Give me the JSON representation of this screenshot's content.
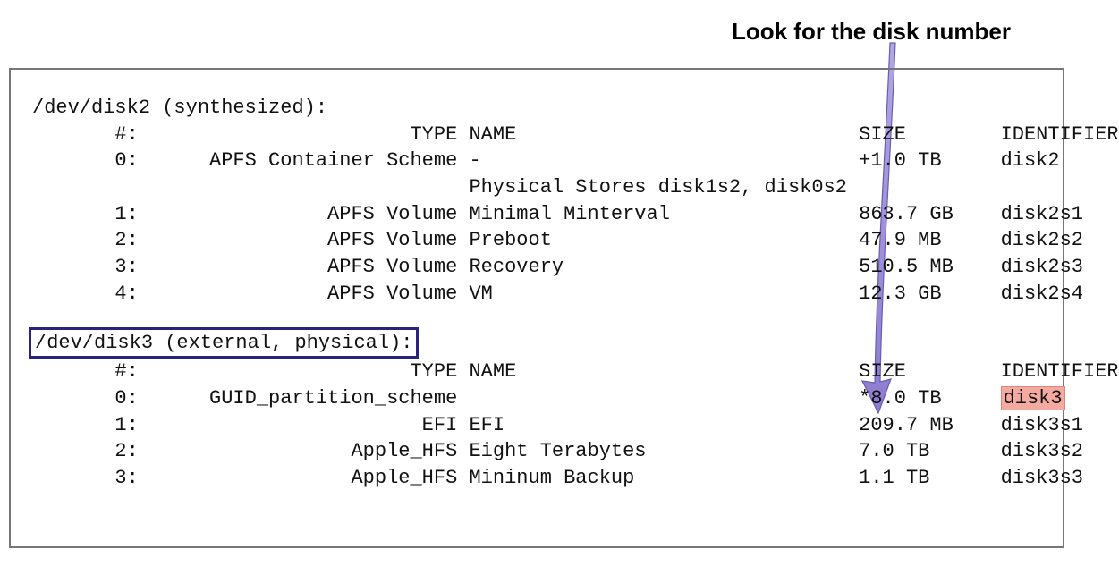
{
  "callout": {
    "text": "Look for the disk number",
    "font_size": 26,
    "font_weight": 700,
    "color": "#000000"
  },
  "arrow": {
    "color": "#9b8bd9",
    "stroke_color": "#6a5db0",
    "shaft_width": 7
  },
  "terminal": {
    "border_color": "#777777",
    "background": "#ffffff",
    "font_family": "SF Mono, Menlo, Consolas, monospace",
    "font_size": 22,
    "line_height": 1.35,
    "text_color": "#111111",
    "highlight_box": {
      "border_color": "#2a2280",
      "border_width": 3
    },
    "highlight_red": {
      "background": "#f4aaa0",
      "border": "#e1877a"
    },
    "col_widths": {
      "num": 6,
      "type": 27,
      "name": 33,
      "size": 12,
      "identifier": 12
    },
    "disks": [
      {
        "header": "/dev/disk2 (synthesized):",
        "header_boxed": false,
        "columns": {
          "num": "#:",
          "type": "TYPE",
          "name": "NAME",
          "size": "SIZE",
          "identifier": "IDENTIFIER"
        },
        "rows": [
          {
            "num": "0:",
            "type": "APFS Container Scheme",
            "name": "-",
            "size": "+1.0 TB",
            "identifier": "disk2",
            "id_highlight": false
          },
          {
            "num": "",
            "type": "",
            "name": "Physical Stores disk1s2, disk0s2",
            "size": "",
            "identifier": "",
            "id_highlight": false
          },
          {
            "num": "1:",
            "type": "APFS Volume",
            "name": "Minimal Minterval",
            "size": "863.7 GB",
            "identifier": "disk2s1",
            "id_highlight": false
          },
          {
            "num": "2:",
            "type": "APFS Volume",
            "name": "Preboot",
            "size": "47.9 MB",
            "identifier": "disk2s2",
            "id_highlight": false
          },
          {
            "num": "3:",
            "type": "APFS Volume",
            "name": "Recovery",
            "size": "510.5 MB",
            "identifier": "disk2s3",
            "id_highlight": false
          },
          {
            "num": "4:",
            "type": "APFS Volume",
            "name": "VM",
            "size": "12.3 GB",
            "identifier": "disk2s4",
            "id_highlight": false
          }
        ]
      },
      {
        "header": "/dev/disk3 (external, physical):",
        "header_boxed": true,
        "columns": {
          "num": "#:",
          "type": "TYPE",
          "name": "NAME",
          "size": "SIZE",
          "identifier": "IDENTIFIER"
        },
        "rows": [
          {
            "num": "0:",
            "type": "GUID_partition_scheme",
            "name": "",
            "size": "*8.0 TB",
            "identifier": "disk3",
            "id_highlight": true
          },
          {
            "num": "1:",
            "type": "EFI",
            "name": "EFI",
            "size": "209.7 MB",
            "identifier": "disk3s1",
            "id_highlight": false
          },
          {
            "num": "2:",
            "type": "Apple_HFS",
            "name": "Eight Terabytes",
            "size": "7.0 TB",
            "identifier": "disk3s2",
            "id_highlight": false
          },
          {
            "num": "3:",
            "type": "Apple_HFS",
            "name": "Mininum Backup",
            "size": "1.1 TB",
            "identifier": "disk3s3",
            "id_highlight": false
          }
        ]
      }
    ]
  }
}
